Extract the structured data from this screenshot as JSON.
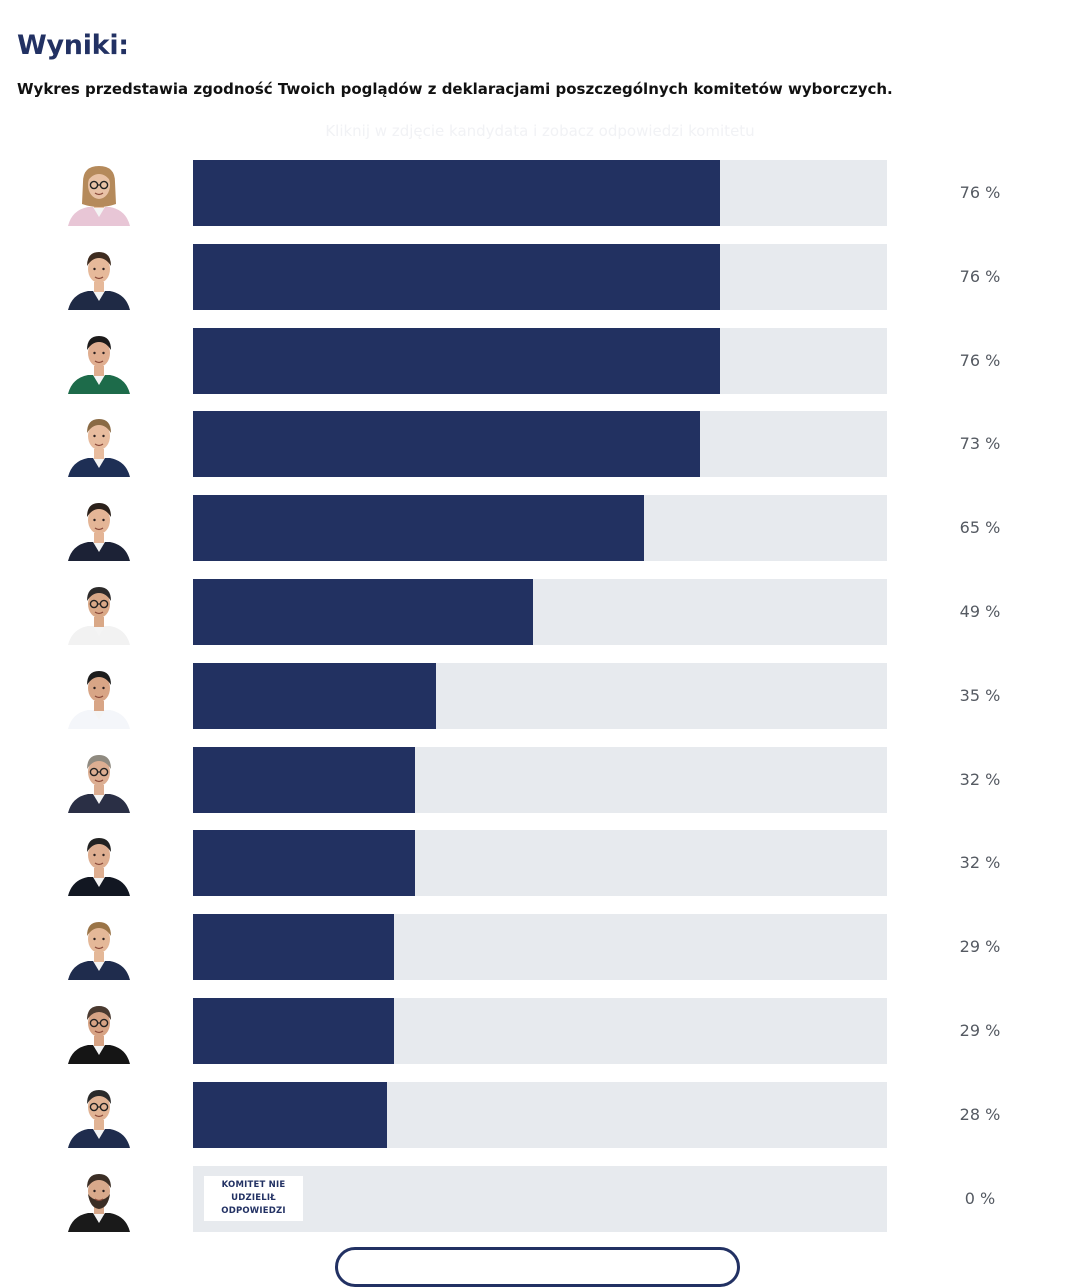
{
  "header": {
    "title": "Wyniki:",
    "subtitle": "Wykres przedstawia zgodność Twoich poglądów z deklaracjami poszczególnych komitetów wyborczych.",
    "hint": "Kliknij w zdjęcie kandydata i zobacz odpowiedzi komitetu"
  },
  "chart_data": {
    "type": "bar",
    "orientation": "horizontal",
    "values": [
      76,
      76,
      76,
      73,
      65,
      49,
      35,
      32,
      32,
      29,
      29,
      28,
      0
    ],
    "value_labels": [
      "76 %",
      "76 %",
      "76 %",
      "73 %",
      "65 %",
      "49 %",
      "35 %",
      "32 %",
      "32 %",
      "29 %",
      "29 %",
      "28 %",
      "0 %"
    ],
    "xlim": [
      0,
      100
    ],
    "no_answer_label": "KOMITET NIE\nUDZIELIŁ\nODPOWIEDZI",
    "colors": {
      "fill": "#223161",
      "track": "#e7eaee",
      "value_text": "#555a62"
    }
  },
  "avatars": [
    {
      "icon": "woman-glasses-portrait",
      "bg": "#ffffff",
      "skin": "#e9c2a6",
      "hair": "#b58a5b",
      "cloth": "#e8c6d6",
      "glasses": true,
      "long_hair": true
    },
    {
      "icon": "man-portrait",
      "bg": "#ffffff",
      "skin": "#e6b99a",
      "hair": "#3e2c20",
      "cloth": "#1f2a45",
      "glasses": false,
      "long_hair": false
    },
    {
      "icon": "woman-portrait",
      "bg": "#ffffff",
      "skin": "#e0ae90",
      "hair": "#1c1a1a",
      "cloth": "#1d6b4a",
      "glasses": false,
      "long_hair": false
    },
    {
      "icon": "man-portrait",
      "bg": "#ffffff",
      "skin": "#e8bc9e",
      "hair": "#8a6a44",
      "cloth": "#1e2f55",
      "glasses": false,
      "long_hair": false
    },
    {
      "icon": "man-portrait",
      "bg": "#ffffff",
      "skin": "#e4b596",
      "hair": "#2b211b",
      "cloth": "#1c2236",
      "glasses": false,
      "long_hair": false
    },
    {
      "icon": "man-glasses-portrait",
      "bg": "#ffffff",
      "skin": "#d9a887",
      "hair": "#2c2a2a",
      "cloth": "#f2f2f2",
      "glasses": true,
      "long_hair": false
    },
    {
      "icon": "man-portrait",
      "bg": "#ffffff",
      "skin": "#d8a586",
      "hair": "#1d1d1d",
      "cloth": "#f4f6fa",
      "glasses": false,
      "long_hair": false
    },
    {
      "icon": "man-glasses-portrait",
      "bg": "#ffffff",
      "skin": "#dcae92",
      "hair": "#8f8a80",
      "cloth": "#2a2f45",
      "glasses": true,
      "long_hair": false
    },
    {
      "icon": "man-portrait",
      "bg": "#ffffff",
      "skin": "#deae90",
      "hair": "#222222",
      "cloth": "#121722",
      "glasses": false,
      "long_hair": false
    },
    {
      "icon": "man-portrait",
      "bg": "#ffffff",
      "skin": "#e4b898",
      "hair": "#9a7447",
      "cloth": "#1f2c4d",
      "glasses": false,
      "long_hair": false
    },
    {
      "icon": "man-glasses-portrait",
      "bg": "#ffffff",
      "skin": "#d7a384",
      "hair": "#4a3a30",
      "cloth": "#151515",
      "glasses": true,
      "long_hair": false
    },
    {
      "icon": "man-glasses-portrait",
      "bg": "#ffffff",
      "skin": "#e1b394",
      "hair": "#2a2a2a",
      "cloth": "#1f2c4d",
      "glasses": true,
      "long_hair": false
    },
    {
      "icon": "man-beard-portrait",
      "bg": "#ffffff",
      "skin": "#d8a98b",
      "hair": "#3b2e25",
      "cloth": "#1a1a1a",
      "glasses": false,
      "long_hair": false
    }
  ]
}
